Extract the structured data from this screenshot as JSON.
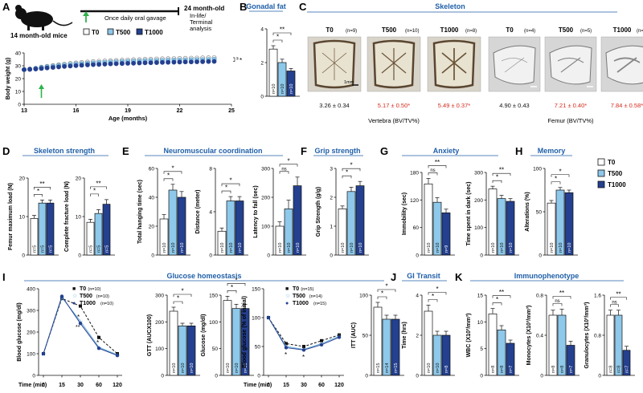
{
  "colors": {
    "t0": "#ffffff",
    "t500": "#8ec8ea",
    "t1000": "#24408f",
    "title": "#1f5fa8",
    "red": "#d42a1d",
    "ink": "#111111",
    "bonebg": "#d9d4c9",
    "ctbg": "#d6d6d6"
  },
  "panel_letters": [
    "A",
    "B",
    "C",
    "D",
    "E",
    "F",
    "G",
    "H",
    "I",
    "J",
    "K"
  ],
  "A": {
    "mouse_label": "14 month-old mice",
    "gavage_label": "Once daily oral gavage",
    "end_label": "24 month-old",
    "end_sub1": "In-life/",
    "end_sub2": "Terminal",
    "end_sub3": "analysis",
    "legend": [
      "T0",
      "T500",
      "T1000"
    ],
    "sig": "*",
    "chart_data": {
      "type": "line",
      "xlabel": "Age (months)",
      "ylabel": "Body weight (g)",
      "xlim": [
        13,
        25
      ],
      "ylim": [
        0,
        40
      ],
      "xticks": [
        "13",
        "16",
        "19",
        "22",
        "25"
      ],
      "yticks": [
        "0",
        "10",
        "20",
        "30",
        "40"
      ],
      "x": [
        13.0,
        13.33,
        13.67,
        14.0,
        14.33,
        14.67,
        15.0,
        15.33,
        15.67,
        16.0,
        16.33,
        16.67,
        17.0,
        17.33,
        17.67,
        18.0,
        18.33,
        18.67,
        19.0,
        19.33,
        19.67,
        20.0,
        20.33,
        20.67,
        21.0,
        21.33,
        21.67,
        22.0,
        22.33,
        22.67,
        23.0,
        23.33,
        23.67,
        24.0
      ],
      "series": [
        {
          "name": "T0",
          "values": [
            27.0,
            27.5,
            28.1,
            28.9,
            29.6,
            30.2,
            30.8,
            31.3,
            31.8,
            32.2,
            32.6,
            32.9,
            33.2,
            33.5,
            33.7,
            33.9,
            34.1,
            34.3,
            34.5,
            34.7,
            34.8,
            35.0,
            35.1,
            35.3,
            35.4,
            35.5,
            35.6,
            35.7,
            35.8,
            35.9,
            36.0,
            36.1,
            36.2,
            36.3
          ]
        },
        {
          "name": "T500",
          "values": [
            27.0,
            27.4,
            27.9,
            28.6,
            29.2,
            29.7,
            30.2,
            30.6,
            31.0,
            31.4,
            31.7,
            32.0,
            32.2,
            32.5,
            32.7,
            32.9,
            33.1,
            33.3,
            33.4,
            33.6,
            33.7,
            33.9,
            34.0,
            34.1,
            34.2,
            34.3,
            34.4,
            34.5,
            34.6,
            34.7,
            34.8,
            34.8,
            34.9,
            35.0
          ]
        },
        {
          "name": "T1000",
          "values": [
            27.0,
            27.2,
            27.5,
            27.9,
            28.3,
            28.7,
            29.1,
            29.5,
            29.8,
            30.1,
            30.4,
            30.7,
            30.9,
            31.1,
            31.3,
            31.5,
            31.6,
            31.8,
            31.9,
            32.0,
            32.2,
            32.3,
            32.4,
            32.5,
            32.6,
            32.7,
            32.8,
            32.9,
            33.0,
            33.0,
            33.1,
            33.2,
            33.3,
            33.4
          ]
        }
      ]
    }
  },
  "B": {
    "title": "Gonadal fat",
    "ylabel": "Gonadal fat pad/BW (%)",
    "sig": [
      "*",
      "**"
    ],
    "chart_data": {
      "type": "bar",
      "categories": [
        "T0",
        "T500",
        "T1000"
      ],
      "values": [
        2.8,
        2.0,
        1.5
      ],
      "errors": [
        0.2,
        0.2,
        0.15
      ],
      "n": [
        "n=10",
        "n=10",
        "n=10"
      ],
      "ylim": [
        0,
        4
      ],
      "yticks": [
        "0",
        "2",
        "4"
      ]
    }
  },
  "C": {
    "title": "Skeleton",
    "vert_cols": [
      {
        "name": "T0",
        "n": "(n=9)"
      },
      {
        "name": "T500",
        "n": "(n=10)"
      },
      {
        "name": "T1000",
        "n": "(n=8)"
      }
    ],
    "fem_cols": [
      {
        "name": "T0",
        "n": "(n=4)"
      },
      {
        "name": "T500",
        "n": "(n=5)"
      },
      {
        "name": "T1000",
        "n": "(n=4)"
      }
    ],
    "scale": "1mm",
    "vert_values": [
      "3.26 ± 0.34",
      "5.17 ± 0.50*",
      "5.49 ± 0.37*"
    ],
    "fem_values": [
      "4.90 ± 0.43",
      "7.21 ± 0.40*",
      "7.84 ± 0.58*"
    ],
    "vert_caption": "Vertebra (BV/TV%)",
    "fem_caption": "Femur (BV/TV%)"
  },
  "D": {
    "title": "Skeleton strength",
    "charts": [
      {
        "type": "bar",
        "ylabel": "Femur maximum load (N)",
        "categories": [
          "T0",
          "T500",
          "T1000"
        ],
        "values": [
          9.5,
          13.5,
          13.5
        ],
        "errors": [
          0.8,
          0.8,
          0.8
        ],
        "n": [
          "n=5",
          "n=5",
          "n=5"
        ],
        "ylim": [
          0,
          20
        ],
        "yticks": [
          "0",
          "10",
          "20"
        ],
        "sig": [
          "*",
          "**"
        ]
      },
      {
        "type": "bar",
        "ylabel": "Complete fracture load (N)",
        "categories": [
          "T0",
          "T500",
          "T1000"
        ],
        "values": [
          8.5,
          10.8,
          13.2
        ],
        "errors": [
          0.8,
          1.0,
          1.2
        ],
        "n": [
          "n=5",
          "n=5",
          "n=5"
        ],
        "ylim": [
          0,
          20
        ],
        "yticks": [
          "0",
          "10",
          "20"
        ],
        "sig": [
          "*",
          "**"
        ]
      }
    ]
  },
  "E": {
    "title": "Neuromuscular coordination",
    "charts": [
      {
        "type": "bar",
        "ylabel": "Total hanging time (sec)",
        "categories": [
          "T0",
          "T500",
          "T1000"
        ],
        "values": [
          25,
          45,
          40
        ],
        "errors": [
          3,
          4,
          4
        ],
        "n": [
          "n=10",
          "n=10",
          "n=10"
        ],
        "ylim": [
          0,
          60
        ],
        "yticks": [
          "0",
          "20",
          "40",
          "60"
        ],
        "sig": [
          "*",
          "*"
        ]
      },
      {
        "type": "bar",
        "ylabel": "Distance (meter)",
        "categories": [
          "T0",
          "T500",
          "T1000"
        ],
        "values": [
          2.2,
          5.0,
          5.0
        ],
        "errors": [
          0.3,
          0.4,
          0.4
        ],
        "n": [
          "n=10",
          "n=10",
          "n=10"
        ],
        "ylim": [
          0,
          8
        ],
        "yticks": [
          "0",
          "4",
          "8"
        ],
        "sig": [
          "*",
          "*"
        ]
      },
      {
        "type": "bar",
        "ylabel": "Latency to fall (sec)",
        "categories": [
          "T0",
          "T500",
          "T1000"
        ],
        "values": [
          100,
          160,
          240
        ],
        "errors": [
          15,
          30,
          30
        ],
        "n": [
          "n=10",
          "n=10",
          "n=10"
        ],
        "ylim": [
          0,
          300
        ],
        "yticks": [
          "0",
          "100",
          "200",
          "300"
        ],
        "sig": [
          "ns",
          "*"
        ]
      }
    ]
  },
  "F": {
    "title": "Grip strength",
    "chart_data": {
      "type": "bar",
      "ylabel": "Grip Strength (g/g)",
      "categories": [
        "T0",
        "T500",
        "T1000"
      ],
      "values": [
        1.6,
        2.2,
        2.4
      ],
      "errors": [
        0.1,
        0.15,
        0.15
      ],
      "n": [
        "n=10",
        "n=10",
        "n=10"
      ],
      "ylim": [
        0,
        3
      ],
      "yticks": [
        "0",
        "1",
        "2",
        "3"
      ],
      "sig": [
        "*",
        "*"
      ]
    }
  },
  "G": {
    "title": "Anxiety",
    "charts": [
      {
        "type": "bar",
        "ylabel": "Immobility (sec)",
        "categories": [
          "T0",
          "T500",
          "T1000"
        ],
        "values": [
          155,
          115,
          92
        ],
        "errors": [
          12,
          10,
          8
        ],
        "n": [
          "n=10",
          "n=10",
          "n=9"
        ],
        "ylim": [
          0,
          180
        ],
        "yticks": [
          "0",
          "60",
          "120",
          "180"
        ],
        "sig": [
          "ns",
          "**"
        ]
      },
      {
        "type": "bar",
        "ylabel": "Time spent in dark (sec)",
        "categories": [
          "T0",
          "T500",
          "T1000"
        ],
        "values": [
          240,
          205,
          195
        ],
        "errors": [
          10,
          12,
          10
        ],
        "n": [
          "n=10",
          "n=10",
          "n=10"
        ],
        "ylim": [
          0,
          300
        ],
        "yticks": [
          "0",
          "100",
          "200",
          "300"
        ],
        "sig": [
          "*",
          "**"
        ]
      }
    ]
  },
  "H": {
    "title": "Memory",
    "legend": [
      "T0",
      "T500",
      "T1000"
    ],
    "chart_data": {
      "type": "bar",
      "ylabel": "Alterations (%)",
      "categories": [
        "T0",
        "T500",
        "T1000"
      ],
      "values": [
        60,
        75,
        72
      ],
      "errors": [
        3,
        3,
        3
      ],
      "n": [
        "n=10",
        "n=10",
        "n=10"
      ],
      "ylim": [
        0,
        100
      ],
      "yticks": [
        "0",
        "50",
        "100"
      ],
      "sig": [
        "*",
        "*"
      ]
    }
  },
  "I": {
    "title": "Glucose homeostasis",
    "gtt_legend": [
      {
        "name": "T0",
        "n": "(n=10)"
      },
      {
        "name": "T500",
        "n": "(n=10)"
      },
      {
        "name": "T1000",
        "n": "(n=10)"
      }
    ],
    "itt_legend": [
      {
        "name": "T0",
        "n": "(n=15)"
      },
      {
        "name": "T500",
        "n": "(n=14)"
      },
      {
        "name": "T1000",
        "n": "(n=15)"
      }
    ],
    "gtt_chart": {
      "type": "line",
      "xlabel": "Time (min)",
      "ylabel": "Blood glucose (mg/dl)",
      "x": [
        0,
        15,
        30,
        60,
        120
      ],
      "xticks": [
        "0",
        "15",
        "30",
        "60",
        "120"
      ],
      "ylim": [
        0,
        400
      ],
      "yticks": [
        "0",
        "100",
        "200",
        "300",
        "400"
      ],
      "series": [
        {
          "name": "T0",
          "values": [
            100,
            355,
            320,
            175,
            100
          ]
        },
        {
          "name": "T500",
          "values": [
            100,
            360,
            250,
            130,
            95
          ]
        },
        {
          "name": "T1000",
          "values": [
            100,
            365,
            240,
            125,
            92
          ]
        }
      ],
      "sig": [
        "*",
        "**",
        "*"
      ]
    },
    "gtt_bar": {
      "type": "bar",
      "ylabel": "GTT (AUCX100)",
      "categories": [
        "T0",
        "T500",
        "T1000"
      ],
      "values": [
        240,
        185,
        185
      ],
      "errors": [
        15,
        10,
        10
      ],
      "n": [
        "n=10",
        "n=10",
        "n=10"
      ],
      "ylim": [
        0,
        300
      ],
      "yticks": [
        "0",
        "100",
        "200",
        "300"
      ],
      "sig": [
        "*",
        "*"
      ]
    },
    "glu_bar": {
      "type": "bar",
      "ylabel": "Glucose (mg/dl)",
      "categories": [
        "T0",
        "T500",
        "T1000"
      ],
      "values": [
        140,
        125,
        125
      ],
      "errors": [
        8,
        8,
        8
      ],
      "n": [
        "n=10",
        "n=10",
        "n=10"
      ],
      "ylim": [
        0,
        150
      ],
      "yticks": [
        "0",
        "50",
        "100",
        "150"
      ],
      "sig": [
        "*",
        "*"
      ]
    },
    "itt_chart": {
      "type": "line",
      "xlabel": "Time (min)",
      "ylabel": "Blood glucose (% of initial)",
      "x": [
        0,
        15,
        30,
        60,
        120
      ],
      "xticks": [
        "0",
        "15",
        "30",
        "60",
        "120"
      ],
      "ylim": [
        0,
        150
      ],
      "yticks": [
        "0",
        "50",
        "100",
        "150"
      ],
      "series": [
        {
          "name": "T0",
          "values": [
            100,
            55,
            50,
            60,
            70
          ]
        },
        {
          "name": "T500",
          "values": [
            100,
            50,
            45,
            55,
            68
          ]
        },
        {
          "name": "T1000",
          "values": [
            100,
            48,
            44,
            53,
            66
          ]
        }
      ],
      "sig": [
        "*",
        "*"
      ]
    },
    "itt_bar": {
      "type": "bar",
      "ylabel": "ITT (AUC)",
      "categories": [
        "T0",
        "T500",
        "T1000"
      ],
      "values": [
        85,
        70,
        70
      ],
      "errors": [
        6,
        5,
        5
      ],
      "n": [
        "n=15",
        "n=14",
        "n=15"
      ],
      "ylim": [
        0,
        100
      ],
      "yticks": [
        "0",
        "50",
        "100"
      ],
      "sig": [
        "*",
        "*"
      ]
    }
  },
  "J": {
    "title": "GI Transit",
    "chart_data": {
      "type": "bar",
      "ylabel": "Time (hrs)",
      "categories": [
        "T0",
        "T500",
        "T1000"
      ],
      "values": [
        3.2,
        2.0,
        2.0
      ],
      "errors": [
        0.3,
        0.2,
        0.2
      ],
      "n": [
        "n=10",
        "n=10",
        "n=8"
      ],
      "ylim": [
        0,
        4
      ],
      "yticks": [
        "0",
        "2",
        "4"
      ],
      "sig": [
        "*",
        "*"
      ]
    }
  },
  "K": {
    "title": "Immunophenotype",
    "charts": [
      {
        "type": "bar",
        "ylabel": "WBC (X10³/mm³)",
        "categories": [
          "T0",
          "T500",
          "T1000"
        ],
        "values": [
          11.5,
          8.5,
          6.0
        ],
        "errors": [
          1.0,
          0.8,
          0.6
        ],
        "n": [
          "n=8",
          "n=8",
          "n=7"
        ],
        "ylim": [
          0,
          15
        ],
        "yticks": [
          "0",
          "5",
          "10",
          "15"
        ],
        "sig": [
          "*",
          "**"
        ]
      },
      {
        "type": "bar",
        "ylabel": "Monocytes (X10³/mm³)",
        "categories": [
          "T0",
          "T500",
          "T1000"
        ],
        "values": [
          0.6,
          0.6,
          0.3
        ],
        "errors": [
          0.05,
          0.06,
          0.04
        ],
        "n": [
          "n=8",
          "n=8",
          "n=7"
        ],
        "ylim": [
          0,
          0.8
        ],
        "yticks": [
          "0",
          "0.4",
          "0.8"
        ],
        "sig": [
          "ns",
          "**"
        ]
      },
      {
        "type": "bar",
        "ylabel": "Granulocytes (X10³/mm³)",
        "categories": [
          "T0",
          "T500",
          "T1000"
        ],
        "values": [
          1.2,
          1.2,
          0.5
        ],
        "errors": [
          0.1,
          0.1,
          0.08
        ],
        "n": [
          "n=8",
          "n=8",
          "n=7"
        ],
        "ylim": [
          0,
          1.6
        ],
        "yticks": [
          "0",
          "0.8",
          "1.6"
        ],
        "sig": [
          "ns",
          "**"
        ]
      }
    ]
  }
}
